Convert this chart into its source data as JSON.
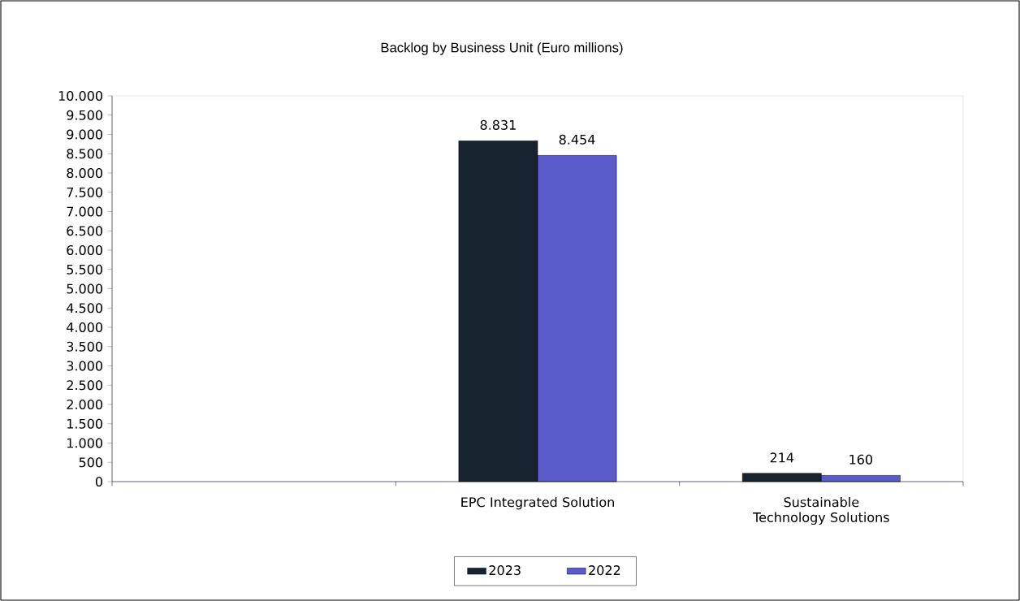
{
  "chart_data": {
    "type": "bar",
    "title": "Backlog by Business Unit (Euro millions)",
    "categories": [
      null,
      "EPC Integrated Solution",
      "Sustainable Technology Solutions"
    ],
    "series": [
      {
        "name": "2023",
        "color": "#17232f",
        "values": [
          null,
          8831,
          214
        ],
        "value_labels": [
          null,
          "8.831",
          "214"
        ]
      },
      {
        "name": "2022",
        "color": "#5b5bcc",
        "values": [
          null,
          8454,
          160
        ],
        "value_labels": [
          null,
          "8.454",
          "160"
        ]
      }
    ],
    "ylim": [
      0,
      10000
    ],
    "yticks": [
      {
        "value": 0,
        "label": "0"
      },
      {
        "value": 500,
        "label": "500"
      },
      {
        "value": 1000,
        "label": "1.000"
      },
      {
        "value": 1500,
        "label": "1.500"
      },
      {
        "value": 2000,
        "label": "2.000"
      },
      {
        "value": 2500,
        "label": "2.500"
      },
      {
        "value": 3000,
        "label": "3.000"
      },
      {
        "value": 3500,
        "label": "3.500"
      },
      {
        "value": 4000,
        "label": "4.000"
      },
      {
        "value": 4500,
        "label": "4.500"
      },
      {
        "value": 5000,
        "label": "5.000"
      },
      {
        "value": 5500,
        "label": "5.500"
      },
      {
        "value": 6000,
        "label": "6.000"
      },
      {
        "value": 6500,
        "label": "6.500"
      },
      {
        "value": 7000,
        "label": "7.000"
      },
      {
        "value": 7500,
        "label": "7.500"
      },
      {
        "value": 8000,
        "label": "8.000"
      },
      {
        "value": 8500,
        "label": "8.500"
      },
      {
        "value": 9000,
        "label": "9.000"
      },
      {
        "value": 9500,
        "label": "9.500"
      },
      {
        "value": 10000,
        "label": "10.000"
      }
    ],
    "legend": "bottom"
  }
}
